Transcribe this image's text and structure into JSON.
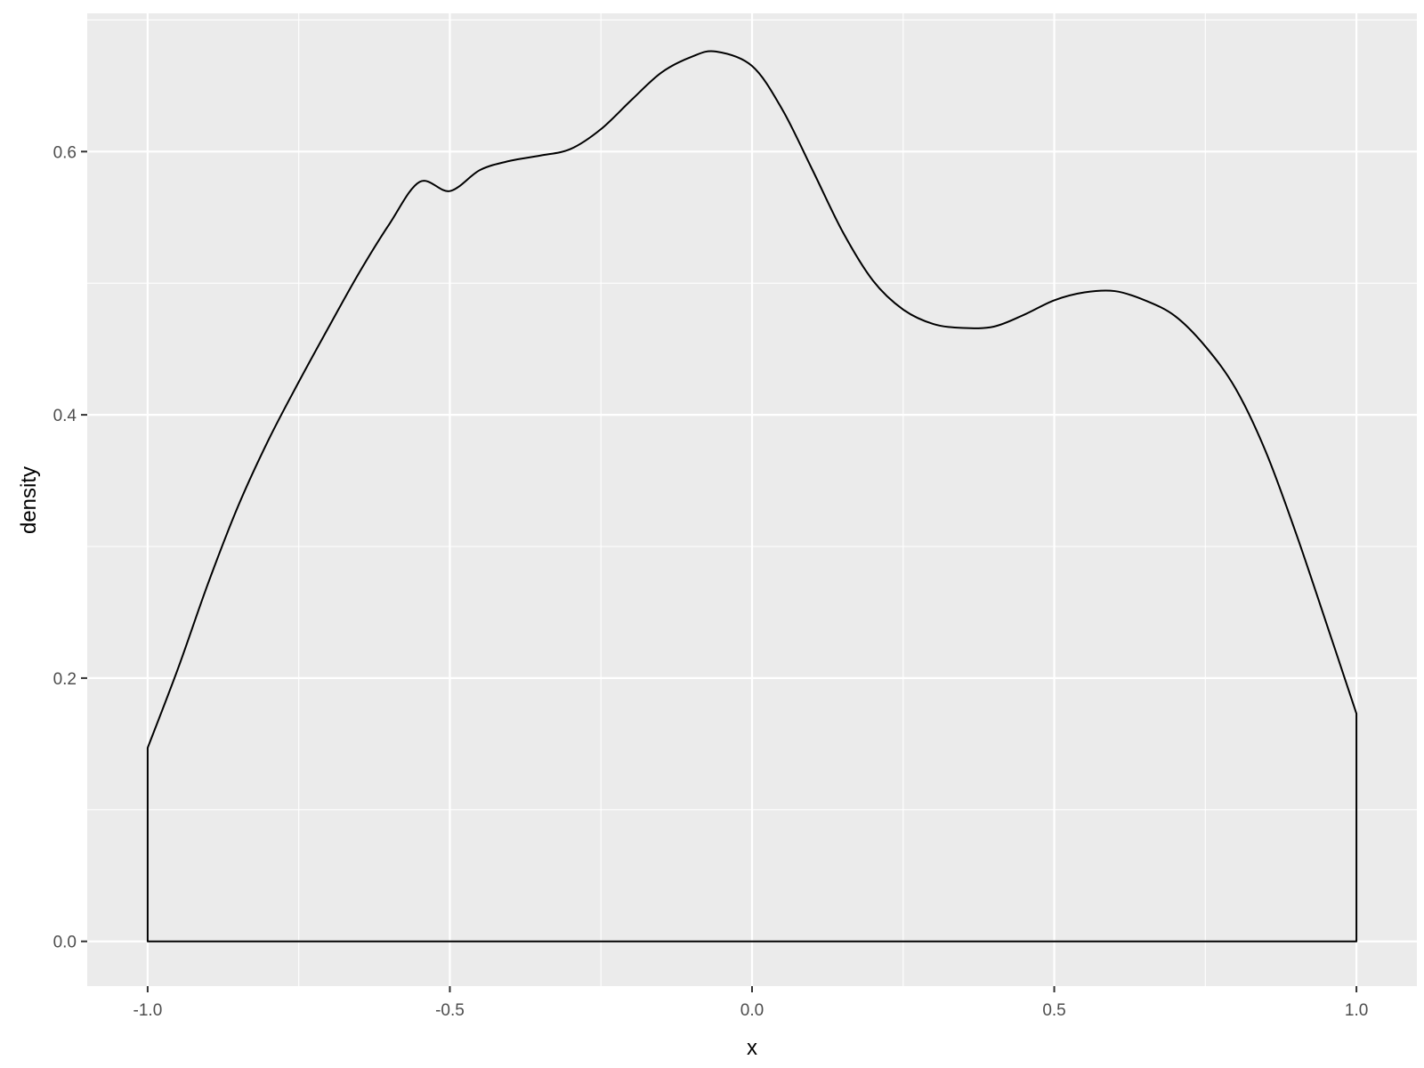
{
  "chart_data": {
    "type": "area",
    "title": "",
    "xlabel": "x",
    "ylabel": "density",
    "xlim": [
      -1.1,
      1.1
    ],
    "ylim": [
      -0.034,
      0.705
    ],
    "x_ticks": [
      -1.0,
      -0.5,
      0.0,
      0.5,
      1.0
    ],
    "x_tick_labels": [
      "-1.0",
      "-0.5",
      "0.0",
      "0.5",
      "1.0"
    ],
    "y_ticks": [
      0.0,
      0.2,
      0.4,
      0.6
    ],
    "y_tick_labels": [
      "0.0",
      "0.2",
      "0.4",
      "0.6"
    ],
    "x_minor_ticks": [
      -0.75,
      -0.25,
      0.25,
      0.75
    ],
    "y_minor_ticks": [
      0.1,
      0.3,
      0.5,
      0.7
    ],
    "grid": true,
    "legend": "none",
    "colors": {
      "panel_background": "#EBEBEB",
      "grid": "#FFFFFF",
      "line": "#000000",
      "fill": "none"
    },
    "series": [
      {
        "x": [
          -1.0,
          -1.0,
          -0.95,
          -0.9,
          -0.85,
          -0.8,
          -0.75,
          -0.7,
          -0.65,
          -0.6,
          -0.55,
          -0.5,
          -0.45,
          -0.4,
          -0.35,
          -0.3,
          -0.25,
          -0.2,
          -0.15,
          -0.1,
          -0.06,
          0.0,
          0.05,
          0.1,
          0.15,
          0.2,
          0.25,
          0.3,
          0.35,
          0.4,
          0.45,
          0.5,
          0.55,
          0.6,
          0.65,
          0.7,
          0.75,
          0.8,
          0.85,
          0.9,
          0.95,
          1.0,
          1.0
        ],
        "y": [
          0.0,
          0.147,
          0.207,
          0.272,
          0.331,
          0.381,
          0.425,
          0.467,
          0.508,
          0.545,
          0.577,
          0.57,
          0.586,
          0.593,
          0.597,
          0.602,
          0.617,
          0.639,
          0.66,
          0.672,
          0.676,
          0.665,
          0.632,
          0.586,
          0.539,
          0.502,
          0.48,
          0.469,
          0.466,
          0.467,
          0.476,
          0.487,
          0.493,
          0.494,
          0.487,
          0.475,
          0.452,
          0.42,
          0.372,
          0.31,
          0.242,
          0.173,
          0.0
        ]
      }
    ]
  }
}
